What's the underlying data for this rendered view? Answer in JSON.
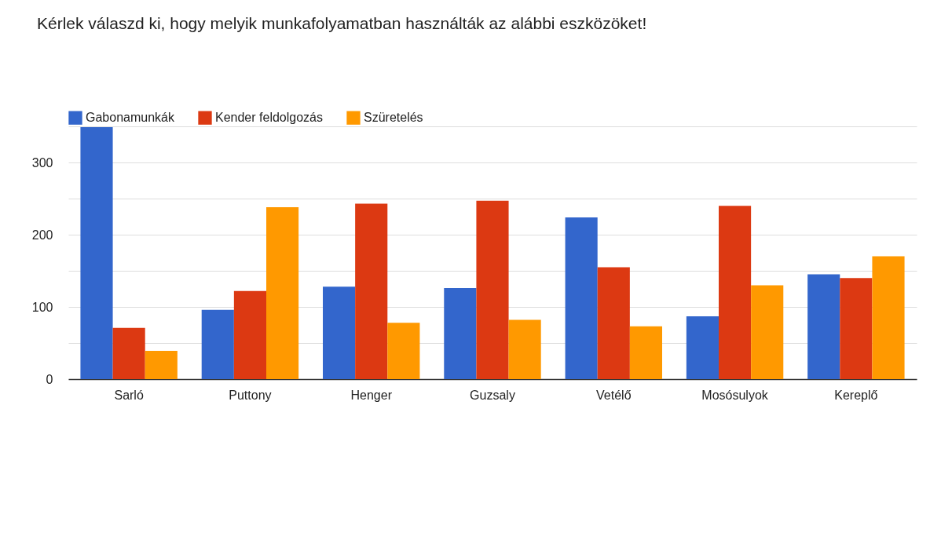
{
  "chart_data": {
    "type": "bar",
    "title": "Kérlek válaszd ki, hogy melyik munkafolyamatban használták az alábbi eszközöket!",
    "categories": [
      "Sarló",
      "Puttony",
      "Henger",
      "Guzsaly",
      "Vetélő",
      "Mosósulyok",
      "Kereplő"
    ],
    "series": [
      {
        "name": "Gabonamunkák",
        "color": "#3366cc",
        "values": [
          349,
          96,
          128,
          126,
          224,
          87,
          145
        ]
      },
      {
        "name": "Kender feldolgozás",
        "color": "#dc3912",
        "values": [
          71,
          122,
          243,
          247,
          155,
          240,
          140
        ]
      },
      {
        "name": "Szüretelés",
        "color": "#ff9900",
        "values": [
          39,
          238,
          78,
          82,
          73,
          130,
          170
        ]
      }
    ],
    "ylim": [
      0,
      350
    ],
    "yticks": [
      0,
      {
        "value": 50,
        "label": null
      },
      100,
      {
        "value": 150,
        "label": null
      },
      200,
      {
        "value": 250,
        "label": null
      },
      300,
      {
        "value": 350,
        "label": null
      }
    ],
    "grid": "y",
    "legend": "top left"
  }
}
